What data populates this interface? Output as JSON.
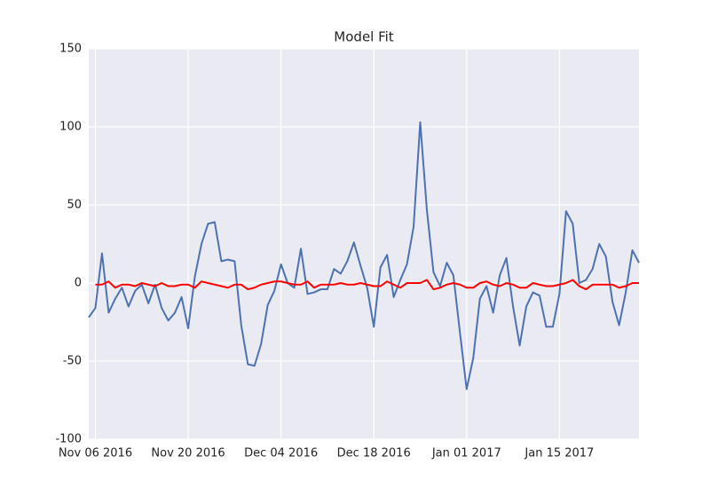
{
  "chart_data": {
    "type": "line",
    "title": "Model Fit",
    "x": [
      "2016-11-05",
      "2016-11-06",
      "2016-11-07",
      "2016-11-08",
      "2016-11-09",
      "2016-11-10",
      "2016-11-11",
      "2016-11-12",
      "2016-11-13",
      "2016-11-14",
      "2016-11-15",
      "2016-11-16",
      "2016-11-17",
      "2016-11-18",
      "2016-11-19",
      "2016-11-20",
      "2016-11-21",
      "2016-11-22",
      "2016-11-23",
      "2016-11-24",
      "2016-11-25",
      "2016-11-26",
      "2016-11-27",
      "2016-11-28",
      "2016-11-29",
      "2016-11-30",
      "2016-12-01",
      "2016-12-02",
      "2016-12-03",
      "2016-12-04",
      "2016-12-05",
      "2016-12-06",
      "2016-12-07",
      "2016-12-08",
      "2016-12-09",
      "2016-12-10",
      "2016-12-11",
      "2016-12-12",
      "2016-12-13",
      "2016-12-14",
      "2016-12-15",
      "2016-12-16",
      "2016-12-17",
      "2016-12-18",
      "2016-12-19",
      "2016-12-20",
      "2016-12-21",
      "2016-12-22",
      "2016-12-23",
      "2016-12-24",
      "2016-12-25",
      "2016-12-26",
      "2016-12-27",
      "2016-12-28",
      "2016-12-29",
      "2016-12-30",
      "2016-12-31",
      "2017-01-01",
      "2017-01-02",
      "2017-01-03",
      "2017-01-04",
      "2017-01-05",
      "2017-01-06",
      "2017-01-07",
      "2017-01-08",
      "2017-01-09",
      "2017-01-10",
      "2017-01-11",
      "2017-01-12",
      "2017-01-13",
      "2017-01-14",
      "2017-01-15",
      "2017-01-16",
      "2017-01-17",
      "2017-01-18",
      "2017-01-19",
      "2017-01-20",
      "2017-01-21",
      "2017-01-22",
      "2017-01-23",
      "2017-01-24",
      "2017-01-25",
      "2017-01-26",
      "2017-01-27"
    ],
    "series": [
      {
        "color": "#4C72B0",
        "values": [
          -22,
          -16,
          19,
          -19,
          -10,
          -3,
          -15,
          -5,
          -1,
          -13,
          -1,
          -16,
          -24,
          -19,
          -9,
          -29,
          4,
          25,
          38,
          39,
          14,
          15,
          14,
          -27,
          -52,
          -53,
          -39,
          -14,
          -5,
          12,
          0,
          -3,
          22,
          -7,
          -6,
          -4,
          -4,
          9,
          6,
          14,
          26,
          11,
          -3,
          -28,
          10,
          18,
          -9,
          2,
          12,
          36,
          103,
          47,
          7,
          -2,
          13,
          5,
          -32,
          -68,
          -48,
          -10,
          -2,
          -19,
          5,
          16,
          -15,
          -40,
          -15,
          -6,
          -8,
          -28,
          -28,
          -7,
          46,
          38,
          0,
          2,
          9,
          25,
          17,
          -12,
          -27,
          -6,
          21,
          13
        ]
      },
      {
        "color": "#FF0000",
        "values": [
          null,
          -1,
          -1,
          1,
          -3,
          -1,
          -1,
          -2,
          0,
          -1,
          -2,
          0,
          -2,
          -2,
          -1,
          -1,
          -3,
          1,
          0,
          -1,
          -2,
          -3,
          -1,
          -1,
          -4,
          -3,
          -1,
          0,
          1,
          1,
          0,
          -1,
          -1,
          1,
          -3,
          -1,
          -1,
          -1,
          0,
          -1,
          -1,
          0,
          -1,
          -2,
          -2,
          1,
          -1,
          -3,
          0,
          0,
          0,
          2,
          -4,
          -3,
          -1,
          0,
          -1,
          -3,
          -3,
          0,
          1,
          -1,
          -2,
          0,
          -1,
          -3,
          -3,
          0,
          -1,
          -2,
          -2,
          -1,
          0,
          2,
          -2,
          -4,
          -1,
          -1,
          -1,
          -1,
          -3,
          -2,
          0,
          0
        ]
      }
    ],
    "xlim": [
      "2016-11-05",
      "2017-01-27"
    ],
    "xticks": [
      {
        "value": "2016-11-06",
        "label": "Nov 06 2016"
      },
      {
        "value": "2016-11-20",
        "label": "Nov 20 2016"
      },
      {
        "value": "2016-12-04",
        "label": "Dec 04 2016"
      },
      {
        "value": "2016-12-18",
        "label": "Dec 18 2016"
      },
      {
        "value": "2017-01-01",
        "label": "Jan 01 2017"
      },
      {
        "value": "2017-01-15",
        "label": "Jan 15 2017"
      }
    ],
    "ylim": [
      -100,
      150
    ],
    "yticks": [
      -100,
      -50,
      0,
      50,
      100,
      150
    ],
    "grid": true
  }
}
